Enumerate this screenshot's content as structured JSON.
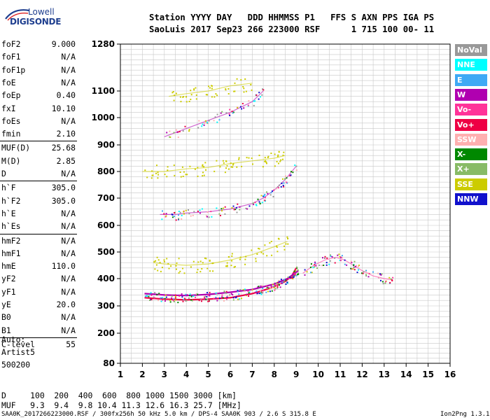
{
  "logo": {
    "line1": "Lowell",
    "line2": "DIGISONDE"
  },
  "header": {
    "line1": "Station YYYY DAY   DDD HHMMSS P1   FFS S AXN PPS IGA PS",
    "line2": "SaoLuis 2017 Sep23 266 223000 RSF      1 715 100 00- 11"
  },
  "params_group1": [
    {
      "name": "foF2",
      "value": "9.000"
    },
    {
      "name": "foF1",
      "value": "N/A"
    },
    {
      "name": "foF1p",
      "value": "N/A"
    },
    {
      "name": "foE",
      "value": "N/A"
    },
    {
      "name": "foEp",
      "value": "0.40"
    },
    {
      "name": "fxI",
      "value": "10.10"
    },
    {
      "name": "foEs",
      "value": "N/A"
    },
    {
      "name": "fmin",
      "value": "2.10"
    }
  ],
  "params_group2": [
    {
      "name": "MUF(D)",
      "value": "25.68"
    },
    {
      "name": "M(D)",
      "value": "2.85"
    },
    {
      "name": "D",
      "value": "N/A"
    }
  ],
  "params_group3": [
    {
      "name": "h`F",
      "value": "305.0"
    },
    {
      "name": "h`F2",
      "value": "305.0"
    },
    {
      "name": "h`E",
      "value": "N/A"
    },
    {
      "name": "h`Es",
      "value": "N/A"
    }
  ],
  "params_group4": [
    {
      "name": "hmF2",
      "value": "N/A"
    },
    {
      "name": "hmF1",
      "value": "N/A"
    },
    {
      "name": "hmE",
      "value": "110.0"
    },
    {
      "name": "yF2",
      "value": "N/A"
    },
    {
      "name": "yF1",
      "value": "N/A"
    },
    {
      "name": "yE",
      "value": "20.0"
    },
    {
      "name": "B0",
      "value": "N/A"
    },
    {
      "name": "B1",
      "value": "N/A"
    }
  ],
  "params_group5": [
    {
      "name": "C-level",
      "value": "55"
    }
  ],
  "autoscale": {
    "line1": "Auto:",
    "line2": "Artist5",
    "line3": "500200"
  },
  "legend": [
    {
      "label": "NoVal",
      "color": "#999999"
    },
    {
      "label": "NNE",
      "color": "#00ffff"
    },
    {
      "label": "E",
      "color": "#3fa9f5"
    },
    {
      "label": "W",
      "color": "#b000b0"
    },
    {
      "label": "Vo-",
      "color": "#ff3399"
    },
    {
      "label": "Vo+",
      "color": "#ee0044"
    },
    {
      "label": "SSW",
      "color": "#ffb0b0"
    },
    {
      "label": "X-",
      "color": "#008800"
    },
    {
      "label": "X+",
      "color": "#88bb66"
    },
    {
      "label": "SSE",
      "color": "#cccc00"
    },
    {
      "label": "NNW",
      "color": "#1111cc"
    }
  ],
  "muf_table": {
    "line1": "D     100  200  400  600  800 1000 1500 3000 [km]",
    "line2": "MUF   9.3  9.4  9.8 10.4 11.3 12.6 16.3 25.7 [MHz]"
  },
  "footer": {
    "left": "SAA0K_2017266223000.RSF / 300fx256h 50 kHz 5.0 km / DPS-4 SAA0K 903 / 2.6 S 315.8 E",
    "right": "Ion2Png 1.3.17"
  },
  "chart_data": {
    "type": "scatter",
    "x_ticks": [
      1,
      2,
      3,
      4,
      5,
      6,
      7,
      8,
      9,
      10,
      11,
      12,
      13,
      14,
      15,
      16
    ],
    "y_ticks": [
      80,
      200,
      300,
      400,
      500,
      600,
      700,
      800,
      900,
      1000,
      1100,
      1280
    ],
    "xlim": [
      1,
      16
    ],
    "ylim": [
      80,
      1280
    ],
    "grid": true,
    "traces": [
      {
        "name": "F2 O-trace",
        "color": "#ee0044",
        "x": [
          2.1,
          3,
          4,
          5,
          6,
          7,
          7.5,
          8,
          8.5,
          8.8,
          9.0
        ],
        "y": [
          330,
          325,
          322,
          325,
          330,
          345,
          357,
          370,
          390,
          410,
          440
        ]
      },
      {
        "name": "F2 X-trace",
        "color": "#b000b0",
        "x": [
          2.1,
          3,
          4,
          5,
          6,
          7,
          8,
          8.6,
          9.1
        ],
        "y": [
          345,
          340,
          338,
          342,
          350,
          360,
          380,
          400,
          430
        ]
      },
      {
        "name": "2F2",
        "color": "#b000b0",
        "x": [
          2.8,
          3.5,
          4,
          5,
          6,
          7,
          7.5,
          8,
          8.5,
          9.0
        ],
        "y": [
          640,
          640,
          645,
          650,
          660,
          680,
          700,
          730,
          770,
          820
        ]
      },
      {
        "name": "3F2",
        "color": "#b000b0",
        "x": [
          3,
          4,
          5,
          6,
          7,
          7.5
        ],
        "y": [
          930,
          960,
          990,
          1020,
          1060,
          1100
        ]
      },
      {
        "name": "spread F",
        "color": "#cccc00",
        "x": [
          2.5,
          3,
          4,
          5,
          6,
          7,
          8,
          8.6
        ],
        "y": [
          460,
          455,
          450,
          455,
          470,
          490,
          520,
          540
        ]
      },
      {
        "name": "spread 2F",
        "color": "#cccc00",
        "x": [
          2,
          3,
          4,
          5,
          6,
          7,
          8,
          8.5
        ],
        "y": [
          800,
          800,
          810,
          815,
          830,
          840,
          850,
          860
        ]
      },
      {
        "name": "spread 3F",
        "color": "#cccc00",
        "x": [
          3.2,
          4,
          5,
          6,
          7
        ],
        "y": [
          1080,
          1090,
          1100,
          1120,
          1130
        ]
      },
      {
        "name": "oblique echoes",
        "color": "#ff3399",
        "x": [
          9.3,
          9.8,
          10.3,
          10.8,
          11.2,
          11.6,
          12.0,
          12.5,
          13.0,
          13.4
        ],
        "y": [
          420,
          450,
          470,
          480,
          470,
          450,
          430,
          410,
          400,
          395
        ]
      }
    ]
  }
}
